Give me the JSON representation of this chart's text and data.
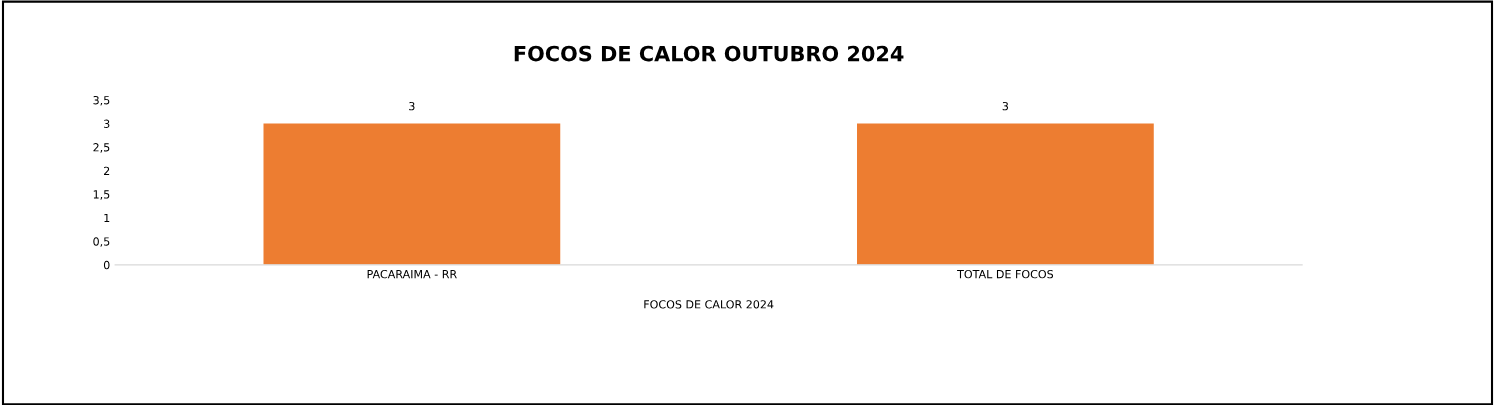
{
  "chart_data": {
    "type": "bar",
    "title": "FOCOS DE CALOR OUTUBRO 2024",
    "xlabel": "FOCOS DE CALOR 2024",
    "categories": [
      "PACARAIMA - RR",
      "TOTAL DE FOCOS"
    ],
    "values": [
      3,
      3
    ],
    "color": "#ed7d31",
    "ylim": [
      0,
      3.5
    ],
    "yticks": [
      0,
      {
        "value": 0.5,
        "label": "0,5"
      },
      1,
      {
        "value": 1.5,
        "label": "1,5"
      },
      2,
      {
        "value": 2.5,
        "label": "2,5"
      },
      3,
      {
        "value": 3.5,
        "label": "3,5"
      }
    ],
    "data_labels": true,
    "grid": false,
    "legend": false
  }
}
